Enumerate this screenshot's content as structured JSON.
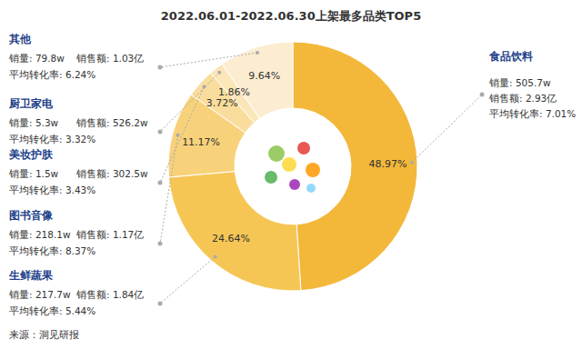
{
  "chart_data": {
    "type": "pie",
    "title": "2022.06.01-2022.06.30上架最多品类TOP5",
    "categories": [
      "食品饮料",
      "生鲜蔬果",
      "图书音像",
      "美妆护肤",
      "厨卫家电",
      "其他"
    ],
    "values": [
      48.97,
      24.64,
      11.17,
      3.72,
      1.86,
      9.64
    ],
    "value_labels": [
      "48.97%",
      "24.64%",
      "11.17%",
      "3.72%",
      "1.86%",
      "9.64%"
    ],
    "colors": [
      "#F3B83A",
      "#F6C655",
      "#F8D27A",
      "#F9DD9C",
      "#FBE6B8",
      "#FCEDD0"
    ],
    "data_labels": true,
    "annotations": [
      [
        "销量: 505.7w",
        "销售额: 2.93亿",
        "平均转化率: 7.01%"
      ],
      [
        "销量: 217.7w",
        "销售额: 1.84亿",
        "平均转化率: 5.44%"
      ],
      [
        "销量: 218.1w",
        "销售额: 1.17亿",
        "平均转化率: 8.37%"
      ],
      [
        "销量: 1.5w",
        "销售额: 302.5w",
        "平均转化率: 3.43%"
      ],
      [
        "销量: 5.3w",
        "销售额: 526.2w",
        "平均转化率: 3.32%"
      ],
      [
        "销量: 79.8w",
        "销售额: 1.03亿",
        "平均转化率: 6.24%"
      ]
    ],
    "source": "来源：洞见研报"
  }
}
